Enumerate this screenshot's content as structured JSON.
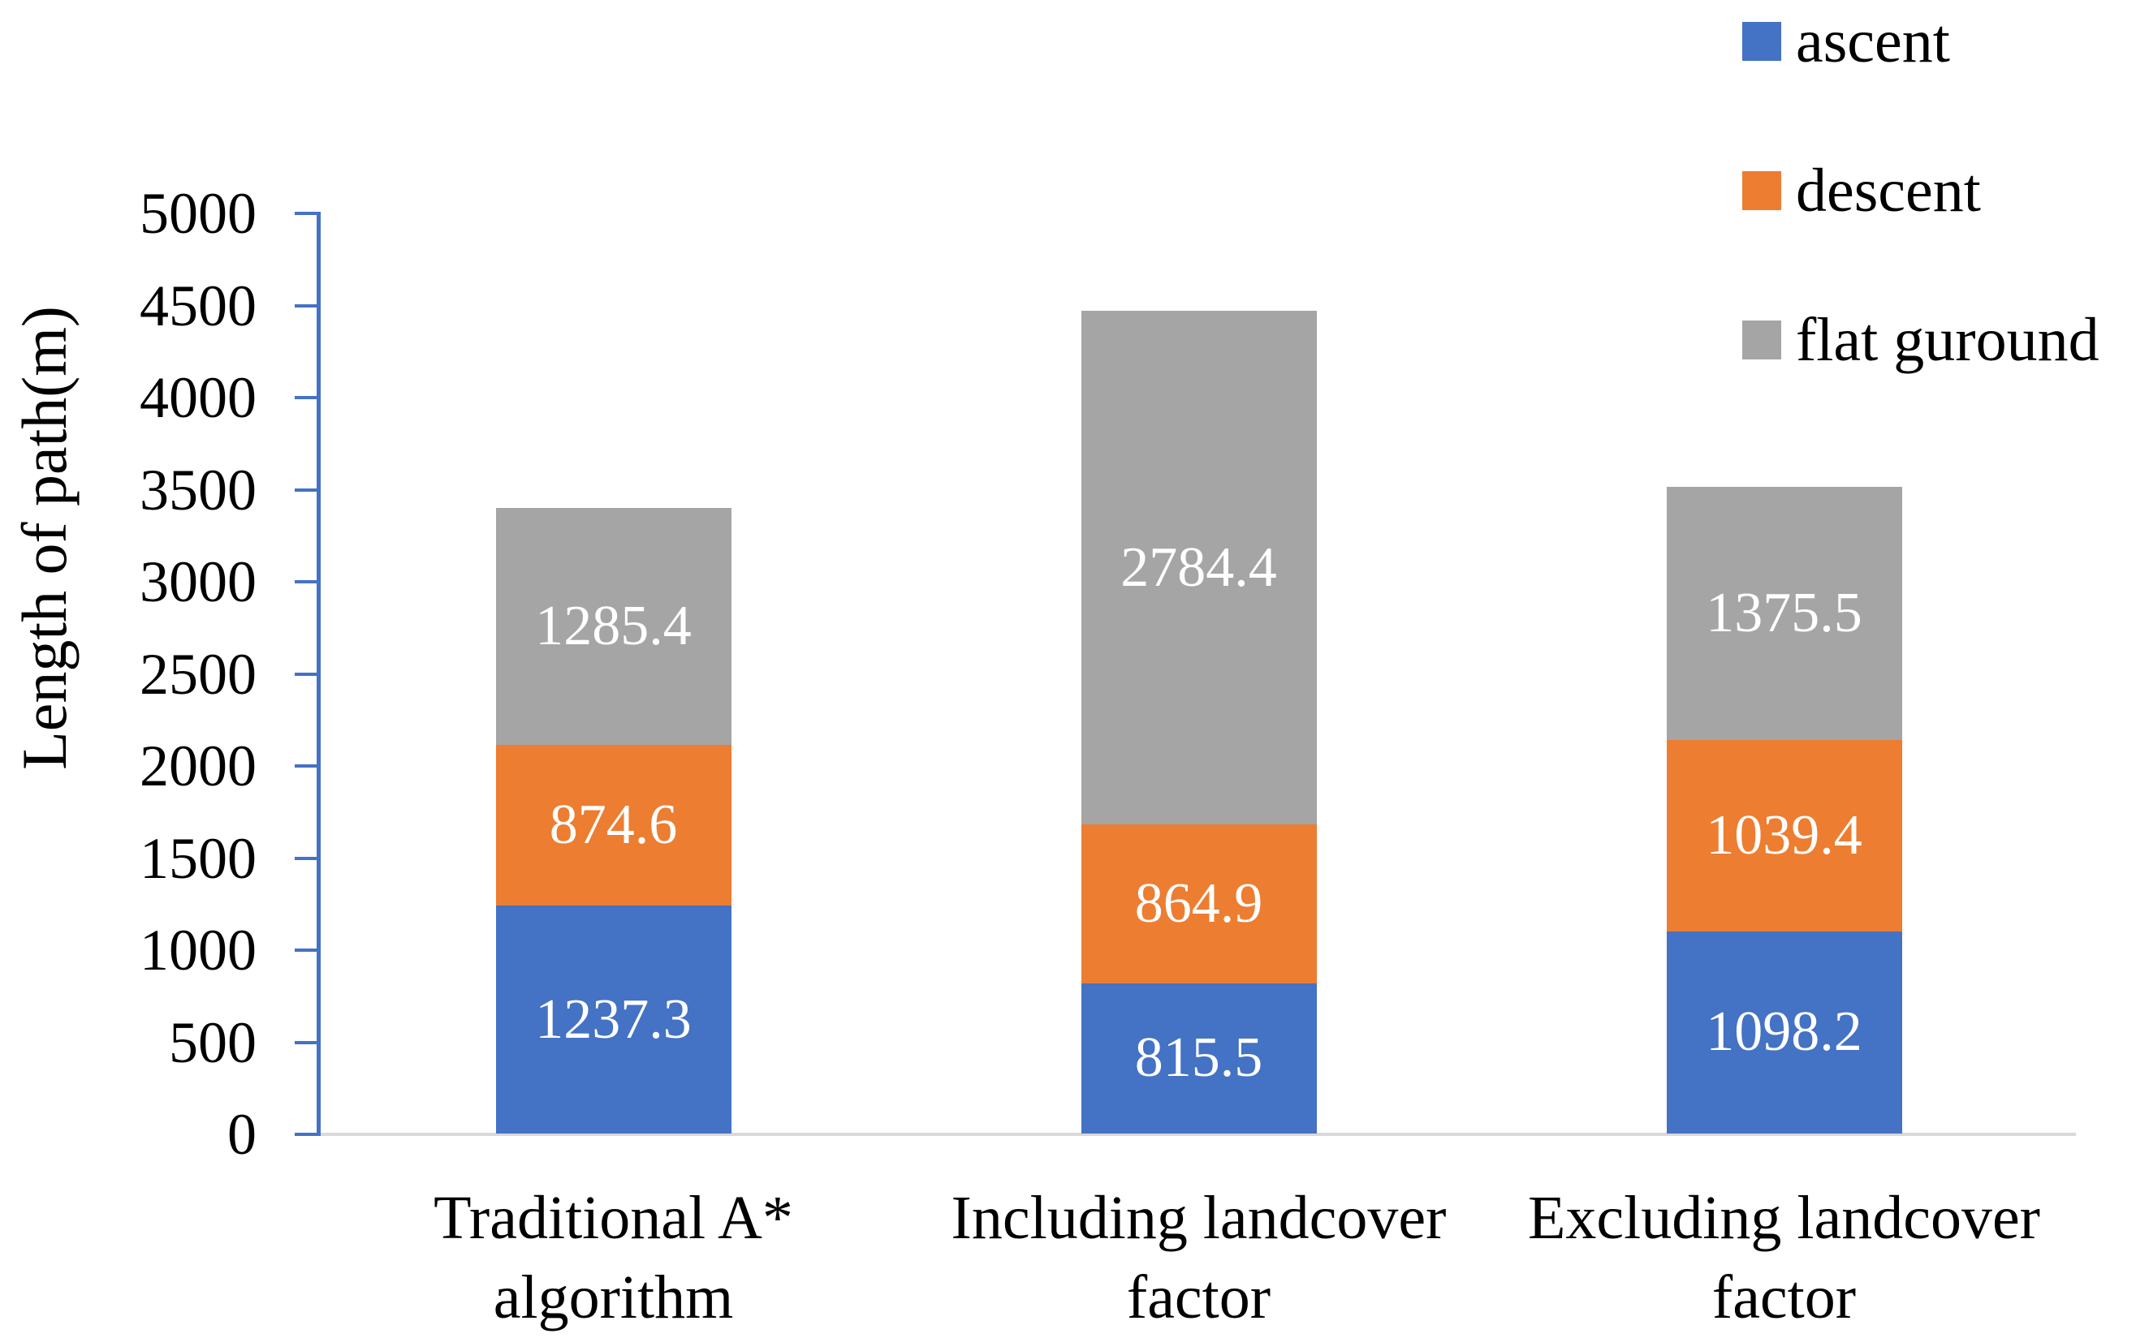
{
  "chart_data": {
    "type": "bar",
    "stacked": true,
    "title": "",
    "xlabel": "",
    "ylabel": "Length of path(m)",
    "ylim": [
      0,
      5000
    ],
    "ytick_step": 500,
    "ytick_labels": [
      "0",
      "500",
      "1000",
      "1500",
      "2000",
      "2500",
      "3000",
      "3500",
      "4000",
      "4500",
      "5000"
    ],
    "categories": [
      "Traditional A* algorithm",
      "Including landcover factor",
      "Excluding landcover factor"
    ],
    "category_lines": [
      [
        "Traditional A*",
        "algorithm"
      ],
      [
        "Including landcover",
        "factor"
      ],
      [
        "Excluding landcover",
        "factor"
      ]
    ],
    "series": [
      {
        "name": "ascent",
        "color": "#4472C4",
        "values": [
          1237.3,
          815.5,
          1098.2
        ]
      },
      {
        "name": "descent",
        "color": "#ED7D31",
        "values": [
          874.6,
          864.9,
          1039.4
        ]
      },
      {
        "name": "flat guround",
        "color": "#A5A5A5",
        "values": [
          1285.4,
          2784.4,
          1375.5
        ]
      }
    ],
    "data_label_color": "#FFFFFF",
    "axis_color": "#4472C4",
    "baseline_color": "#D9D9D9",
    "text_color": "#000000",
    "legend_position": "top-right",
    "grid": false
  }
}
